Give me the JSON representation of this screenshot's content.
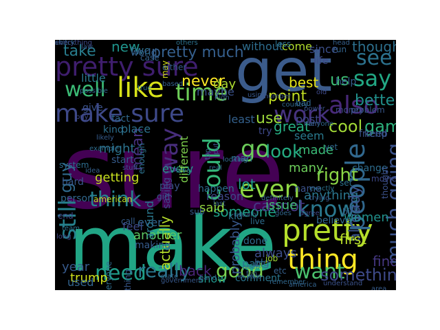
{
  "image": {
    "background": "#000000",
    "colormap": "viridis",
    "words": [
      {
        "text": "sure",
        "color": "#440154"
      },
      {
        "text": "make",
        "color": "#21a585"
      },
      {
        "text": "get",
        "color": "#3b5b8b"
      },
      {
        "text": "pretty sure",
        "color": "#3f1e6e"
      },
      {
        "text": "make sure",
        "color": "#3e4989"
      },
      {
        "text": "like",
        "color": "#d8e219"
      },
      {
        "text": "time",
        "color": "#6ece58"
      },
      {
        "text": "well",
        "color": "#3bbb75"
      },
      {
        "text": "think",
        "color": "#26828e"
      },
      {
        "text": "pretty",
        "color": "#b5de2b"
      },
      {
        "text": "people",
        "color": "#31688e"
      },
      {
        "text": "thing",
        "color": "#fde725"
      },
      {
        "text": "even",
        "color": "#8fd744"
      },
      {
        "text": "know",
        "color": "#2a788e"
      },
      {
        "text": "also",
        "color": "#482878"
      },
      {
        "text": "work",
        "color": "#46327e"
      },
      {
        "text": "say",
        "color": "#22a884"
      },
      {
        "text": "see",
        "color": "#2c728e"
      },
      {
        "text": "could",
        "color": "#35b779"
      },
      {
        "text": "way",
        "color": "#472d7b"
      },
      {
        "text": "go",
        "color": "#6ccd5a"
      },
      {
        "text": "want",
        "color": "#4ac16d"
      },
      {
        "text": "still",
        "color": "#26828e"
      },
      {
        "text": "much going",
        "color": "#3b528b"
      },
      {
        "text": "need",
        "color": "#1f9e89"
      },
      {
        "text": "really",
        "color": "#2a788e"
      },
      {
        "text": "good",
        "color": "#7ad151"
      },
      {
        "text": "something",
        "color": "#3e4a89"
      },
      {
        "text": "pretty much",
        "color": "#355f8d"
      },
      {
        "text": "take",
        "color": "#287d8e"
      },
      {
        "text": "new",
        "color": "#1f948c"
      },
      {
        "text": "though",
        "color": "#2d708e"
      },
      {
        "text": "us",
        "color": "#3dbc74"
      },
      {
        "text": "point",
        "color": "#c2df23"
      },
      {
        "text": "use",
        "color": "#9dd93b"
      },
      {
        "text": "better",
        "color": "#21918c"
      },
      {
        "text": "cool",
        "color": "#a2da37"
      },
      {
        "text": "game",
        "color": "#2db27d"
      },
      {
        "text": "look",
        "color": "#25ac82"
      },
      {
        "text": "right",
        "color": "#8bd646"
      },
      {
        "text": "guy",
        "color": "#306a8e"
      },
      {
        "text": "mean",
        "color": "#46307e"
      },
      {
        "text": "might",
        "color": "#2c738e"
      },
      {
        "text": "lot",
        "color": "#1e9b8a"
      },
      {
        "text": "someone",
        "color": "#1fa287"
      },
      {
        "text": "cannot",
        "color": "#443983"
      },
      {
        "text": "actually",
        "color": "#b5de2b"
      },
      {
        "text": "back",
        "color": "#482475"
      },
      {
        "text": "find",
        "color": "#453781"
      },
      {
        "text": "never",
        "color": "#fde725"
      },
      {
        "text": "day",
        "color": "#addc30"
      },
      {
        "text": "many",
        "color": "#6ccd5a"
      },
      {
        "text": "made",
        "color": "#3aba76"
      },
      {
        "text": "great",
        "color": "#26ad81"
      },
      {
        "text": "anything",
        "color": "#2a768e"
      },
      {
        "text": "already",
        "color": "#3a548c"
      },
      {
        "text": "women",
        "color": "#21918c"
      },
      {
        "text": "getting",
        "color": "#c8e020"
      },
      {
        "text": "year",
        "color": "#375a8c"
      },
      {
        "text": "best",
        "color": "#e5e419"
      },
      {
        "text": "trump",
        "color": "#d0e11c"
      },
      {
        "text": "first",
        "color": "#b8de29"
      },
      {
        "text": "always",
        "color": "#3d4e8a"
      },
      {
        "text": "said",
        "color": "#94d840"
      },
      {
        "text": "two",
        "color": "#2e6f8e"
      },
      {
        "text": "come",
        "color": "#b2dd2d"
      },
      {
        "text": "since",
        "color": "#3c4f8a"
      },
      {
        "text": "without",
        "color": "#2e6d8e"
      },
      {
        "text": "little",
        "color": "#2a788e"
      },
      {
        "text": "every",
        "color": "#20a386"
      },
      {
        "text": "different",
        "color": "#7fd34e"
      },
      {
        "text": "another",
        "color": "#5cc863"
      },
      {
        "text": "probably",
        "color": "#38588c"
      },
      {
        "text": "ever",
        "color": "#32658e"
      },
      {
        "text": "feel",
        "color": "#3e4989"
      },
      {
        "text": "issue",
        "color": "#3fbc73"
      },
      {
        "text": "part",
        "color": "#2a768e"
      },
      {
        "text": "show",
        "color": "#1f958b"
      },
      {
        "text": "used",
        "color": "#32648e"
      },
      {
        "text": "comment",
        "color": "#2a768e"
      },
      {
        "text": "maybe",
        "color": "#3b528b"
      },
      {
        "text": "reason",
        "color": "#3f4788"
      },
      {
        "text": "least",
        "color": "#34618d"
      },
      {
        "text": "try",
        "color": "#3e4989"
      },
      {
        "text": "post",
        "color": "#3f4889"
      },
      {
        "text": "help",
        "color": "#365c8d"
      },
      {
        "text": "life",
        "color": "#3e4a89"
      },
      {
        "text": "seem",
        "color": "#29798e"
      },
      {
        "text": "keep",
        "color": "#38588c"
      },
      {
        "text": "place",
        "color": "#2c728e"
      },
      {
        "text": "fact",
        "color": "#31688e"
      },
      {
        "text": "give",
        "color": "#3b528b"
      },
      {
        "text": "kind",
        "color": "#2d708e"
      },
      {
        "text": "world",
        "color": "#355f8d"
      },
      {
        "text": "start",
        "color": "#365c8d"
      },
      {
        "text": "play",
        "color": "#3b528b"
      },
      {
        "text": "around",
        "color": "#2a788e"
      },
      {
        "text": "person",
        "color": "#31688e"
      },
      {
        "text": "hard",
        "color": "#38588c"
      },
      {
        "text": "end",
        "color": "#3e4989"
      },
      {
        "text": "done",
        "color": "#2f6b8e"
      },
      {
        "text": "big",
        "color": "#35608d"
      },
      {
        "text": "man",
        "color": "#2c728e"
      },
      {
        "text": "job",
        "color": "#a0da39"
      },
      {
        "text": "name",
        "color": "#3b528b"
      },
      {
        "text": "making",
        "color": "#365c8d"
      },
      {
        "text": "believe",
        "color": "#31688e"
      },
      {
        "text": "happen",
        "color": "#2e6d8e"
      },
      {
        "text": "kid",
        "color": "#2c728e"
      },
      {
        "text": "friend",
        "color": "#3b528b"
      },
      {
        "text": "system",
        "color": "#2e6d8e"
      },
      {
        "text": "case",
        "color": "#35608d"
      },
      {
        "text": "bad",
        "color": "#31688e"
      },
      {
        "text": "money",
        "color": "#3e4989"
      },
      {
        "text": "problem",
        "color": "#38588c"
      },
      {
        "text": "run",
        "color": "#33638d"
      },
      {
        "text": "less",
        "color": "#2c728e"
      },
      {
        "text": "may",
        "color": "#d8e219"
      },
      {
        "text": "either",
        "color": "#365c8d"
      },
      {
        "text": "change",
        "color": "#2e6d8e"
      },
      {
        "text": "thought",
        "color": "#3b528b"
      },
      {
        "text": "etc",
        "color": "#35608d"
      },
      {
        "text": "yet",
        "color": "#31688e"
      },
      {
        "text": "enough",
        "color": "#2c728e"
      },
      {
        "text": "saying",
        "color": "#3e4989"
      },
      {
        "text": "girl",
        "color": "#365c8d"
      },
      {
        "text": "america",
        "color": "#33638d"
      },
      {
        "text": "american",
        "color": "#c0df25"
      },
      {
        "text": "everyone",
        "color": "#2e6d8e"
      },
      {
        "text": "nothing",
        "color": "#38588c"
      },
      {
        "text": "anyone",
        "color": "#31688e"
      },
      {
        "text": "stuff",
        "color": "#3b528b"
      },
      {
        "text": "idea",
        "color": "#35608d"
      },
      {
        "text": "team",
        "color": "#2c728e"
      },
      {
        "text": "long",
        "color": "#3e4989"
      },
      {
        "text": "call",
        "color": "#365c8d"
      },
      {
        "text": "fun",
        "color": "#33638d"
      },
      {
        "text": "live",
        "color": "#2e6d8e"
      },
      {
        "text": "sub",
        "color": "#38588c"
      },
      {
        "text": "hand",
        "color": "#31688e"
      },
      {
        "text": "men",
        "color": "#3b528b"
      },
      {
        "text": "bit",
        "color": "#35608d"
      },
      {
        "text": "set",
        "color": "#2c728e"
      },
      {
        "text": "movie",
        "color": "#3e4989"
      },
      {
        "text": "area",
        "color": "#365c8d"
      },
      {
        "text": "state",
        "color": "#33638d"
      },
      {
        "text": "level",
        "color": "#2e6d8e"
      },
      {
        "text": "using",
        "color": "#38588c"
      },
      {
        "text": "country",
        "color": "#31688e"
      },
      {
        "text": "power",
        "color": "#3b528b"
      },
      {
        "text": "head",
        "color": "#35608d"
      },
      {
        "text": "true",
        "color": "#2c728e"
      },
      {
        "text": "buy",
        "color": "#3e4989"
      },
      {
        "text": "likely",
        "color": "#365c8d"
      },
      {
        "text": "possible",
        "color": "#33638d"
      },
      {
        "text": "example",
        "color": "#2e6d8e"
      },
      {
        "text": "government",
        "color": "#38588c"
      },
      {
        "text": "remember",
        "color": "#31688e"
      },
      {
        "text": "understand",
        "color": "#3b528b"
      },
      {
        "text": "last",
        "color": "#35608d"
      },
      {
        "text": "exactly",
        "color": "#2c728e"
      },
      {
        "text": "agree",
        "color": "#3e4989"
      },
      {
        "text": "usually",
        "color": "#365c8d"
      },
      {
        "text": "in sure",
        "color": "#33638d"
      },
      {
        "text": "seen",
        "color": "#2e6d8e"
      },
      {
        "text": "trying",
        "color": "#38588c"
      },
      {
        "text": "looking",
        "color": "#31688e"
      },
      {
        "text": "number",
        "color": "#3b528b"
      },
      {
        "text": "based",
        "color": "#35608d"
      },
      {
        "text": "others",
        "color": "#2c728e"
      },
      {
        "text": "old",
        "color": "#3e4989"
      },
      {
        "text": "high",
        "color": "#365c8d"
      },
      {
        "text": "real",
        "color": "#33638d"
      },
      {
        "text": "top",
        "color": "#2e6d8e"
      },
      {
        "text": "law",
        "color": "#38588c"
      },
      {
        "text": "goes",
        "color": "#31688e"
      },
      {
        "text": "put",
        "color": "#3b528b"
      },
      {
        "text": "definitely",
        "color": "#35608d"
      },
      {
        "text": "check",
        "color": "#2c728e"
      },
      {
        "text": "everything",
        "color": "#3e4989"
      },
      {
        "text": "shit",
        "color": "#365c8d"
      }
    ]
  }
}
